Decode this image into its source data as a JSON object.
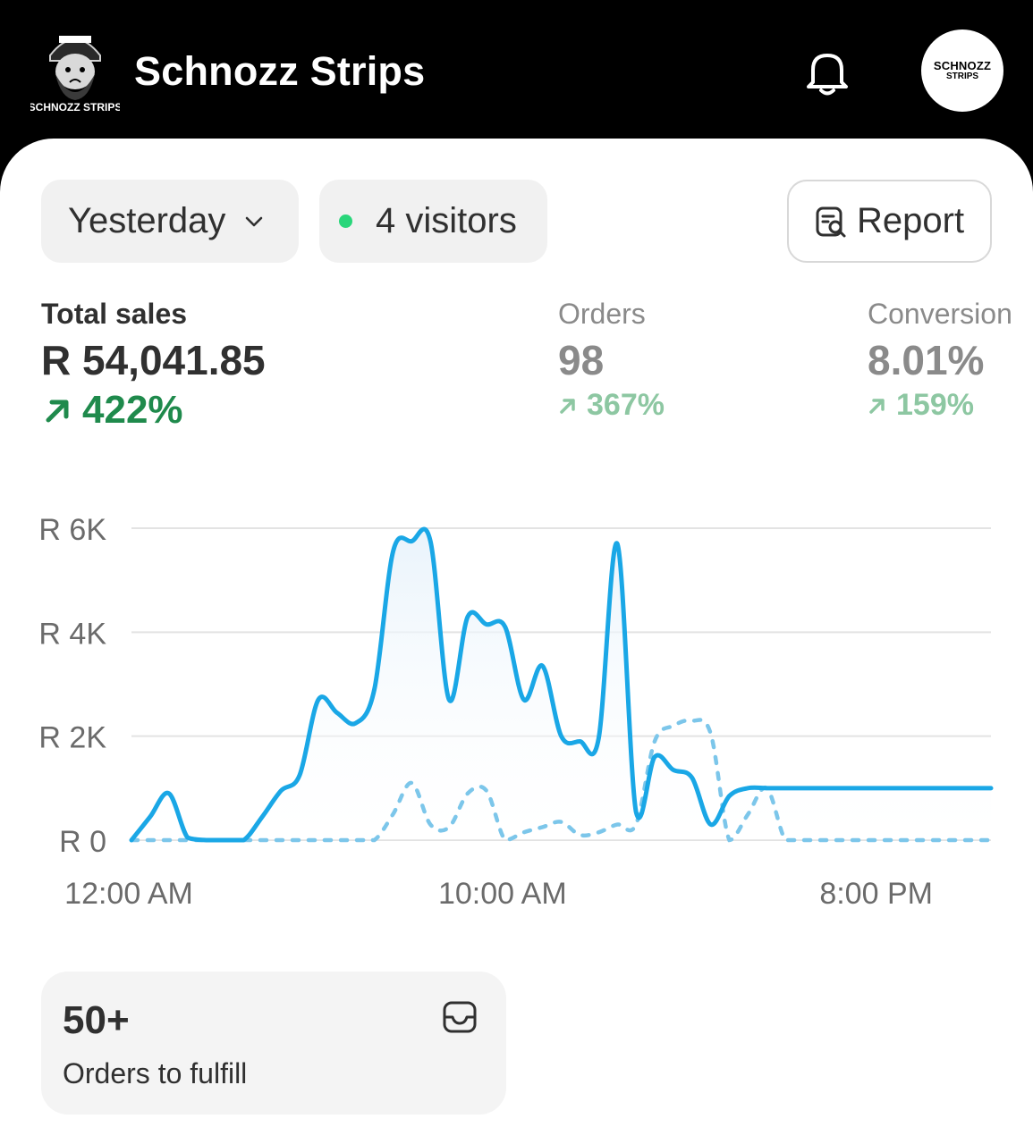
{
  "header": {
    "store_name": "Schnozz Strips",
    "logo_caption": "SCHNOZZ STRIPS",
    "avatar_line1": "SCHNOZZ",
    "avatar_line2": "STRIPS"
  },
  "filters": {
    "date_range": "Yesterday",
    "visitors": "4 visitors",
    "report_label": "Report"
  },
  "metrics": {
    "total_sales": {
      "label": "Total sales",
      "value": "R 54,041.85",
      "delta": "422%"
    },
    "orders": {
      "label": "Orders",
      "value": "98",
      "delta": "367%"
    },
    "conversion": {
      "label": "Conversion",
      "value": "8.01%",
      "delta": "159%"
    }
  },
  "chart_data": {
    "type": "line",
    "ytick_labels": [
      "R 0",
      "R 2K",
      "R 4K",
      "R 6K"
    ],
    "yticks": [
      0,
      2000,
      4000,
      6000
    ],
    "ylim": [
      0,
      6000
    ],
    "xtick_labels": [
      "12:00 AM",
      "10:00 AM",
      "8:00 PM"
    ],
    "xtick_hours": [
      0,
      10,
      20
    ],
    "xlim": [
      0,
      23
    ],
    "grid": true,
    "series": [
      {
        "style": "solid",
        "x": [
          0,
          0.5,
          1,
          1.5,
          2,
          2.5,
          3,
          3.5,
          4,
          4.5,
          5,
          5.5,
          6,
          6.5,
          7,
          7.5,
          8,
          8.5,
          9,
          9.5,
          10,
          10.5,
          11,
          11.5,
          12,
          12.5,
          13,
          13.5,
          14,
          14.5,
          15,
          15.5,
          16,
          16.5,
          17,
          17.5,
          18,
          18.5,
          19,
          19.5,
          20,
          20.5,
          21,
          21.5,
          22,
          22.5,
          23
        ],
        "values": [
          0,
          450,
          900,
          50,
          0,
          0,
          0,
          450,
          950,
          1250,
          2700,
          2450,
          2250,
          2900,
          5550,
          5750,
          5750,
          2700,
          4300,
          4150,
          4100,
          2700,
          3350,
          2000,
          1900,
          1950,
          5700,
          550,
          1600,
          1350,
          1200,
          300,
          850,
          1000,
          1000,
          1000,
          1000,
          1000,
          1000,
          1000,
          1000,
          1000,
          1000,
          1000,
          1000,
          1000,
          1000
        ]
      },
      {
        "style": "dashed",
        "x": [
          0,
          1,
          2,
          3,
          4,
          5,
          6,
          6.5,
          7,
          7.5,
          8,
          8.5,
          9,
          9.5,
          10,
          10.5,
          11,
          11.5,
          12,
          12.5,
          13,
          13.5,
          14,
          14.5,
          15,
          15.5,
          16,
          16.5,
          17,
          17.5,
          18,
          18.5,
          19,
          19.5,
          20,
          20.5,
          21,
          21.5,
          22,
          22.5,
          23
        ],
        "values": [
          0,
          0,
          0,
          0,
          0,
          0,
          0,
          0,
          500,
          1100,
          300,
          250,
          900,
          950,
          0,
          150,
          250,
          350,
          100,
          150,
          300,
          300,
          1900,
          2200,
          2300,
          2050,
          0,
          500,
          1000,
          0,
          0,
          0,
          0,
          0,
          0,
          0,
          0,
          0,
          0,
          0,
          0
        ]
      }
    ]
  },
  "fulfill_card": {
    "count": "50+",
    "label": "Orders to fulfill"
  },
  "colors": {
    "accent": "#1aa7e6",
    "positive": "#1f8a4c",
    "positive_muted": "#8dc7a2",
    "live_dot": "#29d67a"
  }
}
